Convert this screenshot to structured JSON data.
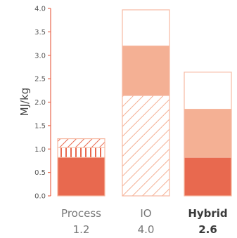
{
  "chart_data": {
    "type": "bar",
    "stacked": true,
    "ylabel": "MJ/kg",
    "ylim": [
      0,
      4.0
    ],
    "yticks": [
      "0.0",
      "0.5",
      "1.0",
      "1.5",
      "2.0",
      "2.5",
      "3.0",
      "3.5",
      "4.0"
    ],
    "categories": [
      {
        "label": "Process",
        "total_label": "1.2",
        "bold": false
      },
      {
        "label": "IO",
        "total_label": "4.0",
        "bold": false
      },
      {
        "label": "Hybrid",
        "total_label": "2.6",
        "bold": true
      }
    ],
    "bars": [
      {
        "total": 1.22,
        "segments": [
          {
            "from": 0.0,
            "to": 0.82,
            "fill": "solid-dark"
          },
          {
            "from": 0.82,
            "to": 1.03,
            "fill": "vertical-hatch"
          },
          {
            "from": 1.03,
            "to": 1.22,
            "fill": "diagonal-hatch"
          }
        ]
      },
      {
        "total": 3.97,
        "segments": [
          {
            "from": 0.0,
            "to": 2.14,
            "fill": "diagonal-hatch"
          },
          {
            "from": 2.14,
            "to": 3.2,
            "fill": "solid-light"
          },
          {
            "from": 3.2,
            "to": 3.97,
            "fill": "white"
          }
        ]
      },
      {
        "total": 2.64,
        "segments": [
          {
            "from": 0.0,
            "to": 0.82,
            "fill": "solid-dark"
          },
          {
            "from": 0.82,
            "to": 1.85,
            "fill": "solid-light"
          },
          {
            "from": 1.85,
            "to": 2.64,
            "fill": "white"
          }
        ]
      }
    ],
    "colors": {
      "dark": "#e8694f",
      "light": "#f4b094",
      "outline": "#f6b9a2",
      "axis": "#e8694f"
    }
  }
}
